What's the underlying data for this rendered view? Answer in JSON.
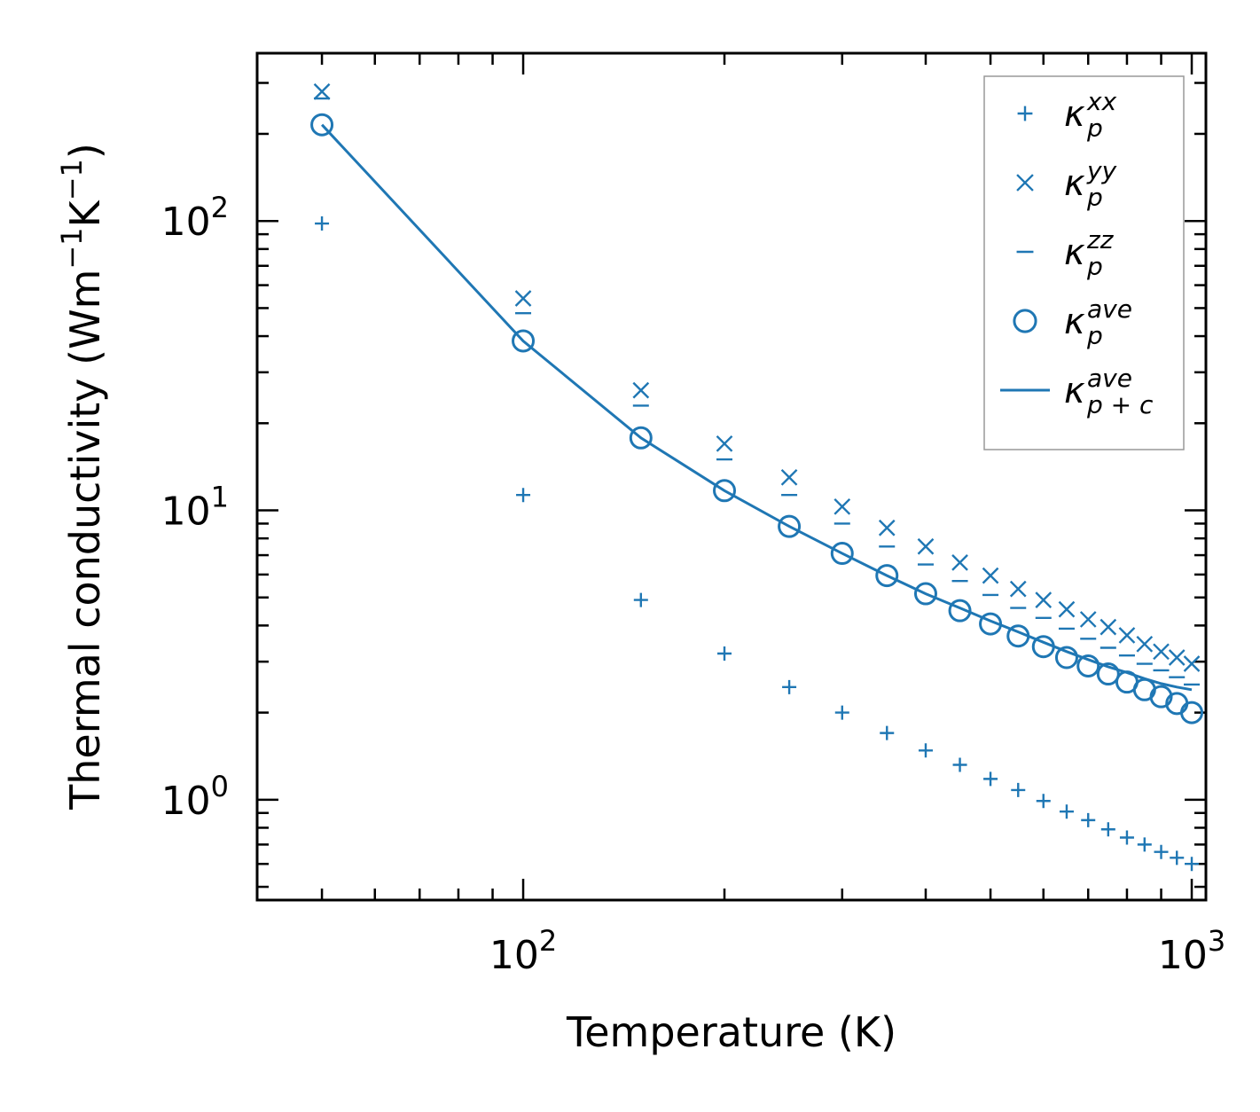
{
  "chart_data": {
    "type": "scatter",
    "title": "",
    "xlabel": "Temperature (K)",
    "ylabel": "Thermal conductivity (Wm",
    "ylabel_unit_parts": [
      "−1",
      "K",
      "−1",
      ")"
    ],
    "xscale": "log",
    "yscale": "log",
    "xlim": [
      40,
      1050
    ],
    "ylim": [
      0.45,
      380
    ],
    "x_ticks": [
      {
        "value": 100,
        "base": "10",
        "exp": "2"
      },
      {
        "value": 1000,
        "base": "10",
        "exp": "3"
      }
    ],
    "y_ticks": [
      {
        "value": 1,
        "base": "10",
        "exp": "0"
      },
      {
        "value": 10,
        "base": "10",
        "exp": "1"
      },
      {
        "value": 100,
        "base": "10",
        "exp": "2"
      }
    ],
    "color": "#1f77b4",
    "legend_position": "top-right",
    "x": [
      50,
      100,
      150,
      200,
      250,
      300,
      350,
      400,
      450,
      500,
      550,
      600,
      650,
      700,
      750,
      800,
      850,
      900,
      950,
      1000
    ],
    "series": [
      {
        "name": "kxx",
        "label_main": "κ",
        "label_sub": "p",
        "label_sup": "xx",
        "marker": "plus",
        "values": [
          98,
          11.3,
          4.9,
          3.2,
          2.45,
          2.0,
          1.7,
          1.48,
          1.32,
          1.18,
          1.08,
          0.99,
          0.91,
          0.85,
          0.79,
          0.74,
          0.7,
          0.66,
          0.63,
          0.6
        ]
      },
      {
        "name": "kyy",
        "label_main": "κ",
        "label_sub": "p",
        "label_sup": "yy",
        "marker": "x",
        "values": [
          280,
          54,
          26,
          17,
          13,
          10.3,
          8.7,
          7.5,
          6.6,
          5.95,
          5.35,
          4.9,
          4.55,
          4.2,
          3.95,
          3.7,
          3.45,
          3.25,
          3.1,
          2.95
        ]
      },
      {
        "name": "kzz",
        "label_main": "κ",
        "label_sub": "p",
        "label_sup": "zz",
        "marker": "hline",
        "values": [
          265,
          48,
          23,
          15,
          11.3,
          9.0,
          7.5,
          6.5,
          5.7,
          5.1,
          4.6,
          4.25,
          3.9,
          3.6,
          3.35,
          3.15,
          2.95,
          2.8,
          2.65,
          2.5
        ]
      },
      {
        "name": "kave",
        "label_main": "κ",
        "label_sub": "p",
        "label_sup": "ave",
        "marker": "circle",
        "values": [
          215,
          38.5,
          17.8,
          11.7,
          8.8,
          7.1,
          5.95,
          5.15,
          4.5,
          4.05,
          3.68,
          3.38,
          3.1,
          2.9,
          2.72,
          2.55,
          2.4,
          2.27,
          2.15,
          2.0
        ]
      },
      {
        "name": "kave_pc",
        "label_main": "κ",
        "label_sub": "p + c",
        "label_sup": "ave",
        "marker": "line",
        "values": [
          215,
          38.5,
          17.8,
          11.7,
          8.8,
          7.1,
          5.95,
          5.15,
          4.6,
          4.15,
          3.8,
          3.5,
          3.25,
          3.05,
          2.88,
          2.75,
          2.62,
          2.52,
          2.45,
          2.4
        ]
      }
    ]
  }
}
